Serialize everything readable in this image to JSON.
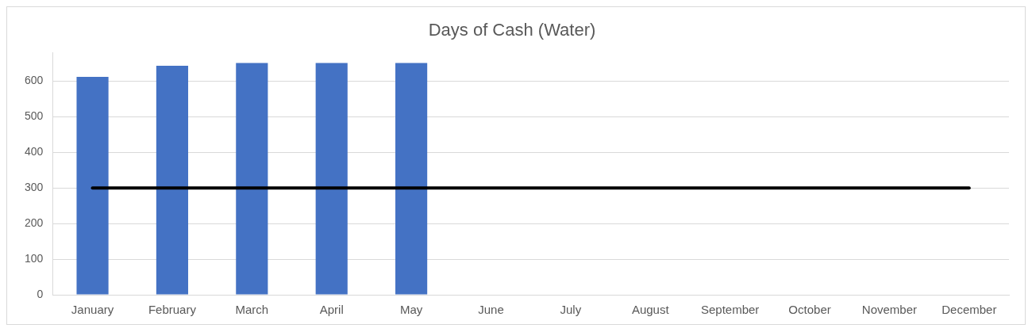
{
  "chart_data": {
    "type": "bar",
    "title": "Days of Cash (Water)",
    "categories": [
      "January",
      "February",
      "March",
      "April",
      "May",
      "June",
      "July",
      "August",
      "September",
      "October",
      "November",
      "December"
    ],
    "series": [
      {
        "color": "#4472c4",
        "values": [
          612,
          643,
          651,
          651,
          651,
          null,
          null,
          null,
          null,
          null,
          null,
          null
        ]
      },
      {
        "type": "line",
        "color": "#000000",
        "values": [
          300,
          300,
          300,
          300,
          300,
          300,
          300,
          300,
          300,
          300,
          300,
          300
        ]
      }
    ],
    "ylim": [
      0,
      680
    ],
    "yticks": [
      0,
      100,
      200,
      300,
      400,
      500,
      600
    ],
    "grid": "y",
    "legend": false,
    "marker": "none"
  }
}
